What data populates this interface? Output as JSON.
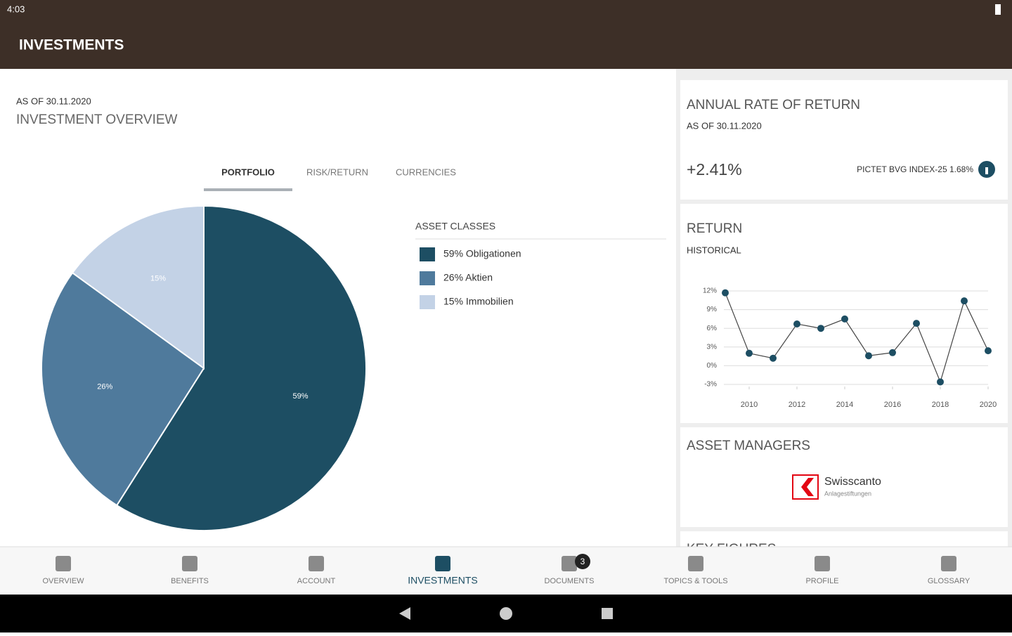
{
  "status_bar": {
    "time": "4:03"
  },
  "app_bar": {
    "title": "INVESTMENTS"
  },
  "overview": {
    "as_of": "AS OF 30.11.2020",
    "title": "INVESTMENT OVERVIEW",
    "tabs": [
      "PORTFOLIO",
      "RISK/RETURN",
      "CURRENCIES"
    ]
  },
  "annual_return": {
    "title": "ANNUAL RATE OF RETURN",
    "as_of": "AS OF 30.11.2020",
    "value": "+2.41%",
    "benchmark": "PICTET BVG INDEX-25 1.68%"
  },
  "return_card": {
    "title": "RETURN",
    "subtitle": "HISTORICAL"
  },
  "asset_managers": {
    "title": "ASSET MANAGERS",
    "name": "Swisscanto",
    "subname": "Anlagestiftungen"
  },
  "next_card": {
    "title": "KEY FIGURES"
  },
  "nav": {
    "items": [
      "OVERVIEW",
      "BENEFITS",
      "ACCOUNT",
      "INVESTMENTS",
      "DOCUMENTS",
      "TOPICS & TOOLS",
      "PROFILE",
      "GLOSSARY"
    ],
    "documents_badge": "3"
  },
  "chart_data": [
    {
      "type": "pie",
      "legend_title": "ASSET CLASSES",
      "categories": [
        "59% Obligationen",
        "26% Aktien",
        "15% Immobilien"
      ],
      "values": [
        59,
        26,
        15
      ],
      "value_labels": [
        "59%",
        "26%",
        "15%"
      ],
      "colors": [
        "#1d4e63",
        "#4f7a9c",
        "#c3d2e6"
      ]
    },
    {
      "type": "line",
      "x": [
        2009,
        2010,
        2011,
        2012,
        2013,
        2014,
        2015,
        2016,
        2017,
        2018,
        2019,
        2020
      ],
      "series": [
        {
          "color": "#1d4e63",
          "values": [
            11.7,
            2.0,
            1.2,
            6.7,
            6.0,
            7.5,
            1.6,
            2.1,
            6.8,
            -2.6,
            10.4,
            2.4
          ]
        }
      ],
      "xlim": [
        2009,
        2020
      ],
      "xticks": [
        2010,
        2012,
        2014,
        2016,
        2018,
        2020
      ],
      "ylim": [
        -3,
        12
      ],
      "yticks": [
        {
          "value": 12,
          "label": "12%"
        },
        {
          "value": 9,
          "label": "9%"
        },
        {
          "value": 6,
          "label": "6%"
        },
        {
          "value": 3,
          "label": "3%"
        },
        {
          "value": 0,
          "label": "0%"
        },
        {
          "value": -3,
          "label": "-3%"
        }
      ],
      "grid": true
    }
  ]
}
